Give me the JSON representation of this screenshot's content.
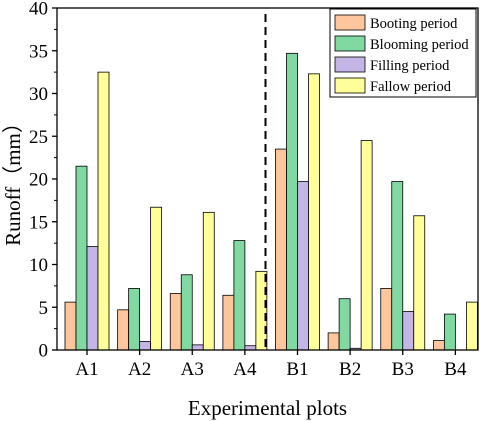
{
  "chart_data": {
    "type": "bar",
    "categories": [
      "A1",
      "A2",
      "A3",
      "A4",
      "B1",
      "B2",
      "B3",
      "B4"
    ],
    "series": [
      {
        "name": "Booting period",
        "color": "#FFC69E",
        "values": [
          5.6,
          4.7,
          6.6,
          6.4,
          23.5,
          2.0,
          7.2,
          1.1
        ]
      },
      {
        "name": "Blooming period",
        "color": "#7FD9A0",
        "values": [
          21.5,
          7.2,
          8.8,
          12.8,
          34.7,
          6.0,
          19.7,
          4.2
        ]
      },
      {
        "name": "Filling period",
        "color": "#C5B4E6",
        "values": [
          12.1,
          1.0,
          0.6,
          0.5,
          19.7,
          0.2,
          4.5,
          0.0
        ]
      },
      {
        "name": "Fallow period",
        "color": "#FFFF99",
        "values": [
          32.5,
          16.7,
          16.1,
          9.2,
          32.3,
          24.5,
          15.7,
          5.6
        ]
      }
    ],
    "title": "",
    "xlabel": "Experimental plots",
    "ylabel": "Runoff（mm）",
    "ylim": [
      0,
      40
    ],
    "yticks": [
      0,
      5,
      10,
      15,
      20,
      25,
      30,
      35,
      40
    ],
    "yticklabels": [
      "0",
      "5",
      "10",
      "15",
      "20",
      "25",
      "30",
      "35",
      "40"
    ],
    "grid": false,
    "legend_position": "top-right",
    "divider_after_category": "A4"
  }
}
